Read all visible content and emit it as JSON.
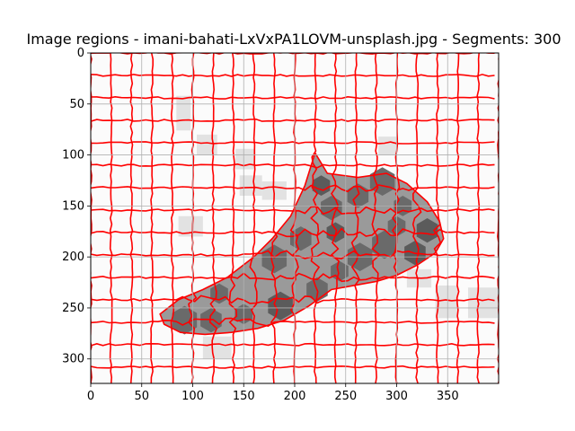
{
  "chart_data": {
    "type": "heatmap",
    "title": "Image regions - imani-bahati-LxVxPA1LOVM-unsplash.jpg - Segments: 300",
    "xlabel": "",
    "ylabel": "",
    "xlim": [
      0,
      400
    ],
    "ylim": [
      324,
      0
    ],
    "x_ticks": [
      0,
      50,
      100,
      150,
      200,
      250,
      300,
      350
    ],
    "y_ticks": [
      0,
      50,
      100,
      150,
      200,
      250,
      300
    ],
    "grid": true,
    "segments": 300,
    "image_size": [
      400,
      324
    ],
    "boundary_color": "#ff0000",
    "region_colors": {
      "background": "#fbfbfb",
      "light_gray": "#e2e2e2",
      "mid_gray": "#9a9a9a",
      "dark_gray": "#6a6a6a",
      "darkest_gray": "#5b5b5b"
    },
    "leaf_outline": [
      [
        220,
        98
      ],
      [
        232,
        118
      ],
      [
        262,
        122
      ],
      [
        290,
        118
      ],
      [
        310,
        128
      ],
      [
        330,
        146
      ],
      [
        342,
        165
      ],
      [
        346,
        182
      ],
      [
        338,
        196
      ],
      [
        320,
        208
      ],
      [
        300,
        218
      ],
      [
        280,
        224
      ],
      [
        258,
        228
      ],
      [
        236,
        232
      ],
      [
        214,
        248
      ],
      [
        190,
        262
      ],
      [
        164,
        270
      ],
      [
        138,
        274
      ],
      [
        112,
        276
      ],
      [
        88,
        274
      ],
      [
        72,
        266
      ],
      [
        68,
        256
      ],
      [
        86,
        242
      ],
      [
        110,
        232
      ],
      [
        134,
        220
      ],
      [
        160,
        200
      ],
      [
        178,
        182
      ],
      [
        196,
        160
      ],
      [
        210,
        130
      ]
    ]
  }
}
